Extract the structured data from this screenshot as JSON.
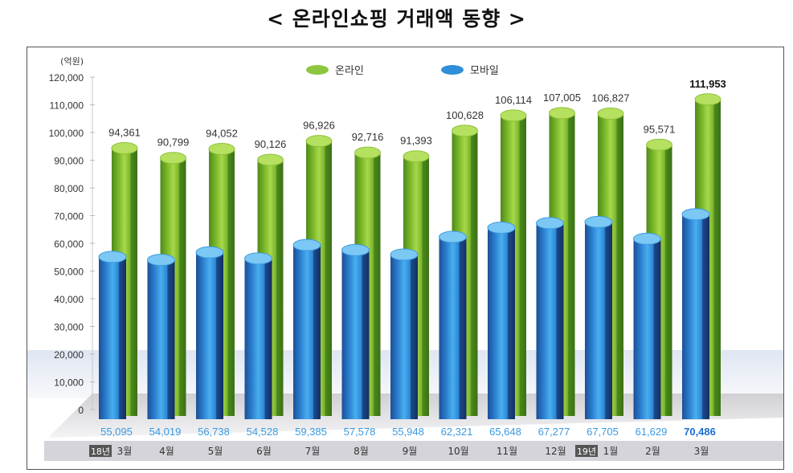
{
  "title": "< 온라인쇼핑 거래액 동향 >",
  "chart_data": {
    "type": "bar",
    "title": "< 온라인쇼핑 거래액 동향 >",
    "ylabel": "(억원)",
    "ylim": [
      0,
      120000
    ],
    "yticks": [
      "0",
      "10,000",
      "20,000",
      "30,000",
      "40,000",
      "50,000",
      "60,000",
      "70,000",
      "80,000",
      "90,000",
      "100,000",
      "110,000",
      "120,000"
    ],
    "categories": [
      "3월",
      "4월",
      "5월",
      "6월",
      "7월",
      "8월",
      "9월",
      "10월",
      "11월",
      "12월",
      "1월",
      "2월",
      "3월"
    ],
    "year_badges": {
      "0": "18년",
      "10": "19년"
    },
    "legend": {
      "position": "top-center",
      "entries": [
        "온라인",
        "모바일"
      ]
    },
    "series": [
      {
        "name": "온라인",
        "color": "#7dbb2e",
        "values": [
          94361,
          90799,
          94052,
          90126,
          96926,
          92716,
          91393,
          100628,
          106114,
          107005,
          106827,
          95571,
          111953
        ],
        "labels": [
          "94,361",
          "90,799",
          "94,052",
          "90,126",
          "96,926",
          "92,716",
          "91,393",
          "100,628",
          "106,114",
          "107,005",
          "106,827",
          "95,571",
          "111,953"
        ]
      },
      {
        "name": "모바일",
        "color": "#2f8fd8",
        "values": [
          55095,
          54019,
          56738,
          54528,
          59385,
          57578,
          55948,
          62321,
          65648,
          67277,
          67705,
          61629,
          70486
        ],
        "labels": [
          "55,095",
          "54,019",
          "56,738",
          "54,528",
          "59,385",
          "57,578",
          "55,948",
          "62,321",
          "65,648",
          "67,277",
          "67,705",
          "61,629",
          "70,486"
        ]
      }
    ]
  }
}
